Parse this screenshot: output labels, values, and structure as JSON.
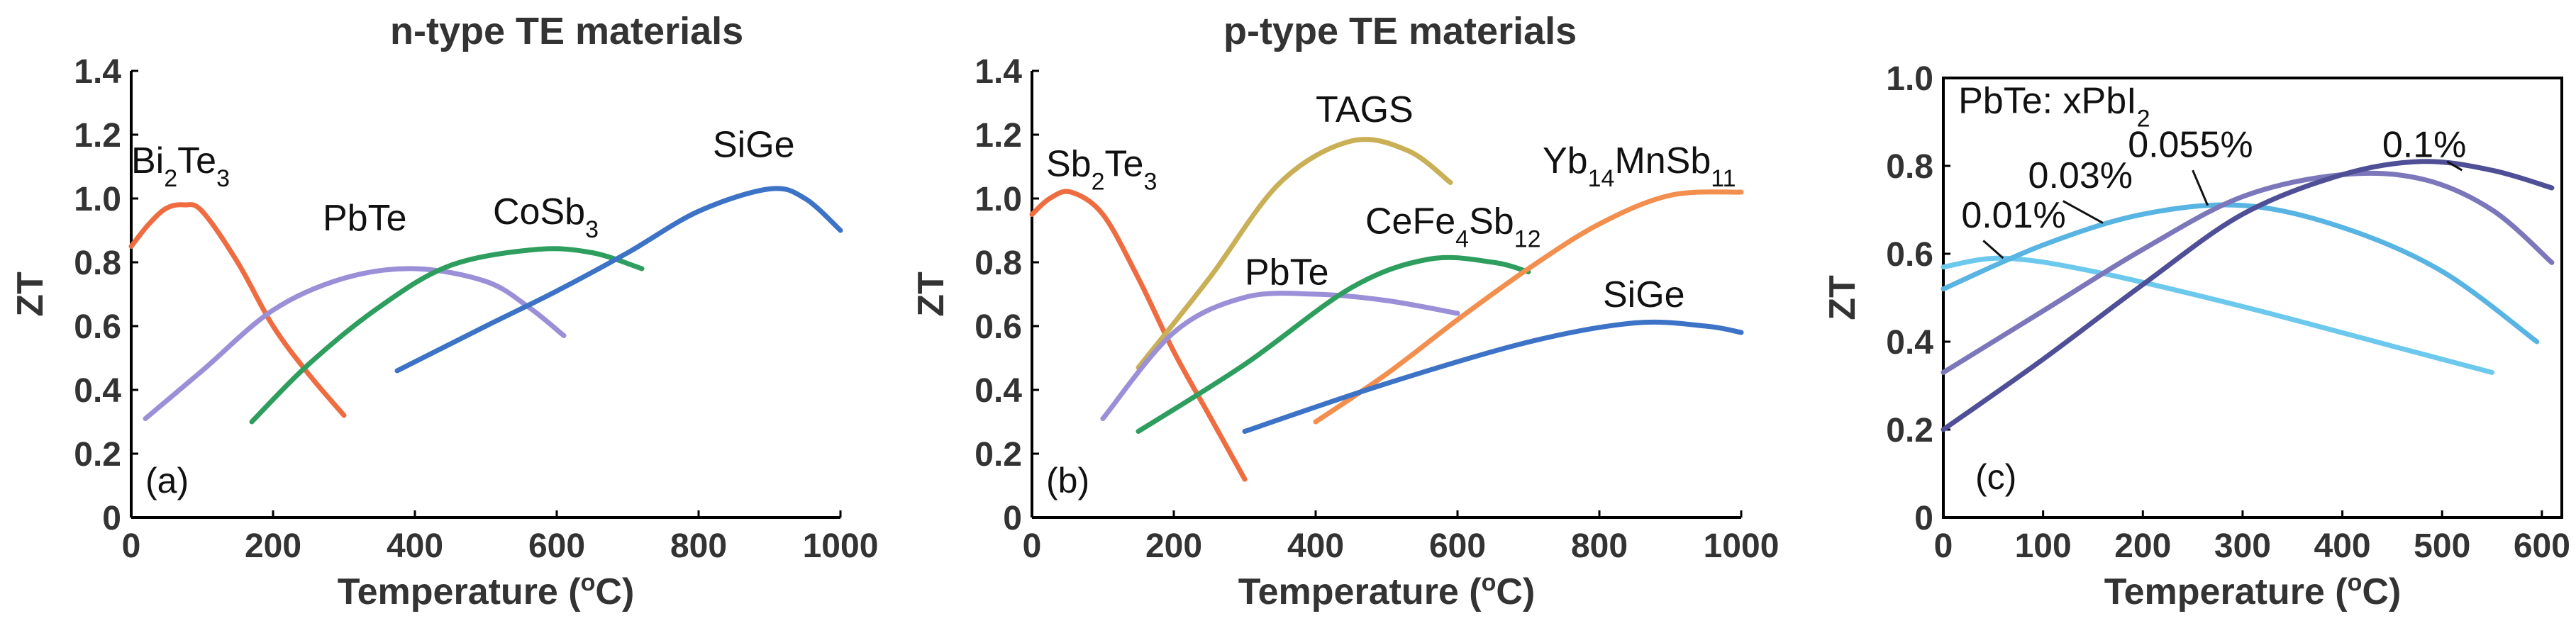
{
  "chart_data": [
    {
      "type": "line",
      "title": "n-type TE materials",
      "panel_label": "(a)",
      "xlabel": "Temperature (",
      "xlabel_sup": "o",
      "xlabel_end": "C)",
      "ylabel": "ZT",
      "xlim": [
        0,
        1000
      ],
      "ylim": [
        0,
        1.4
      ],
      "xticks": [
        0,
        200,
        400,
        600,
        800,
        1000
      ],
      "yticks": [
        0,
        0.2,
        0.4,
        0.6,
        0.8,
        1.0,
        1.2,
        1.4
      ],
      "ytick_labels": [
        "0",
        "0.2",
        "0.4",
        "0.6",
        "0.8",
        "1.0",
        "1.2",
        "1.4"
      ],
      "series": [
        {
          "name": "Bi2Te3",
          "color": "#EE6C40",
          "points": [
            [
              0,
              0.85
            ],
            [
              25,
              0.92
            ],
            [
              50,
              0.97
            ],
            [
              75,
              0.98
            ],
            [
              100,
              0.96
            ],
            [
              150,
              0.8
            ],
            [
              200,
              0.6
            ],
            [
              250,
              0.45
            ],
            [
              300,
              0.32
            ]
          ],
          "label": {
            "parts": [
              [
                "Bi",
                "n"
              ],
              [
                "2",
                "sub"
              ],
              [
                "Te",
                "n"
              ],
              [
                "3",
                "sub"
              ]
            ],
            "at": [
              0,
              1.08
            ]
          }
        },
        {
          "name": "PbTe",
          "color": "#9B8FD8",
          "points": [
            [
              20,
              0.31
            ],
            [
              100,
              0.46
            ],
            [
              200,
              0.65
            ],
            [
              300,
              0.75
            ],
            [
              400,
              0.78
            ],
            [
              500,
              0.74
            ],
            [
              560,
              0.66
            ],
            [
              610,
              0.57
            ]
          ],
          "label": {
            "parts": [
              [
                "PbTe",
                "n"
              ]
            ],
            "at": [
              270,
              0.9
            ]
          }
        },
        {
          "name": "CoSb3",
          "color": "#2E9E5E",
          "points": [
            [
              170,
              0.3
            ],
            [
              250,
              0.48
            ],
            [
              350,
              0.66
            ],
            [
              450,
              0.79
            ],
            [
              570,
              0.84
            ],
            [
              650,
              0.83
            ],
            [
              720,
              0.78
            ]
          ],
          "label": {
            "parts": [
              [
                "CoSb",
                "n"
              ],
              [
                "3",
                "sub"
              ]
            ],
            "at": [
              510,
              0.92
            ]
          }
        },
        {
          "name": "SiGe",
          "color": "#3C73C6",
          "points": [
            [
              375,
              0.46
            ],
            [
              500,
              0.6
            ],
            [
              600,
              0.71
            ],
            [
              700,
              0.83
            ],
            [
              800,
              0.96
            ],
            [
              900,
              1.03
            ],
            [
              950,
              1.0
            ],
            [
              1000,
              0.9
            ]
          ],
          "label": {
            "parts": [
              [
                "SiGe",
                "n"
              ]
            ],
            "at": [
              820,
              1.13
            ]
          }
        }
      ]
    },
    {
      "type": "line",
      "title": "p-type TE materials",
      "panel_label": "(b)",
      "xlabel": "Temperature (",
      "xlabel_sup": "o",
      "xlabel_end": "C)",
      "ylabel": "ZT",
      "xlim": [
        0,
        1000
      ],
      "ylim": [
        0,
        1.4
      ],
      "xticks": [
        0,
        200,
        400,
        600,
        800,
        1000
      ],
      "yticks": [
        0,
        0.2,
        0.4,
        0.6,
        0.8,
        1.0,
        1.2,
        1.4
      ],
      "ytick_labels": [
        "0",
        "0.2",
        "0.4",
        "0.6",
        "0.8",
        "1.0",
        "1.2",
        "1.4"
      ],
      "series": [
        {
          "name": "Sb2Te3",
          "color": "#EE6C40",
          "points": [
            [
              0,
              0.95
            ],
            [
              25,
              1.0
            ],
            [
              55,
              1.02
            ],
            [
              100,
              0.95
            ],
            [
              150,
              0.75
            ],
            [
              200,
              0.52
            ],
            [
              250,
              0.32
            ],
            [
              300,
              0.12
            ]
          ],
          "label": {
            "parts": [
              [
                "Sb",
                "n"
              ],
              [
                "2",
                "sub"
              ],
              [
                "Te",
                "n"
              ],
              [
                "3",
                "sub"
              ]
            ],
            "at": [
              20,
              1.07
            ]
          }
        },
        {
          "name": "TAGS",
          "color": "#C9AF55",
          "points": [
            [
              150,
              0.47
            ],
            [
              250,
              0.75
            ],
            [
              350,
              1.05
            ],
            [
              450,
              1.18
            ],
            [
              530,
              1.15
            ],
            [
              590,
              1.05
            ]
          ],
          "label": {
            "parts": [
              [
                "TAGS",
                "n"
              ]
            ],
            "at": [
              400,
              1.24
            ]
          }
        },
        {
          "name": "PbTe",
          "color": "#9B8FD8",
          "points": [
            [
              100,
              0.31
            ],
            [
              200,
              0.58
            ],
            [
              300,
              0.69
            ],
            [
              400,
              0.7
            ],
            [
              500,
              0.68
            ],
            [
              600,
              0.64
            ]
          ],
          "label": {
            "parts": [
              [
                "PbTe",
                "n"
              ]
            ],
            "at": [
              300,
              0.73
            ]
          }
        },
        {
          "name": "CeFe4Sb12",
          "color": "#2E9E5E",
          "points": [
            [
              150,
              0.27
            ],
            [
              300,
              0.48
            ],
            [
              450,
              0.72
            ],
            [
              560,
              0.81
            ],
            [
              650,
              0.8
            ],
            [
              700,
              0.77
            ]
          ],
          "label": {
            "parts": [
              [
                "CeFe",
                "n"
              ],
              [
                "4",
                "sub"
              ],
              [
                "Sb",
                "n"
              ],
              [
                "12",
                "sub"
              ]
            ],
            "at": [
              470,
              0.89
            ]
          }
        },
        {
          "name": "Yb14MnSb11",
          "color": "#F28F4E",
          "points": [
            [
              400,
              0.3
            ],
            [
              500,
              0.45
            ],
            [
              600,
              0.62
            ],
            [
              700,
              0.78
            ],
            [
              800,
              0.92
            ],
            [
              900,
              1.01
            ],
            [
              1000,
              1.02
            ]
          ],
          "label": {
            "parts": [
              [
                "Yb",
                "n"
              ],
              [
                "14",
                "sub"
              ],
              [
                "MnSb",
                "n"
              ],
              [
                "11",
                "sub"
              ]
            ],
            "at": [
              720,
              1.08
            ]
          }
        },
        {
          "name": "SiGe",
          "color": "#3C73C6",
          "points": [
            [
              300,
              0.27
            ],
            [
              500,
              0.42
            ],
            [
              700,
              0.55
            ],
            [
              850,
              0.61
            ],
            [
              950,
              0.6
            ],
            [
              1000,
              0.58
            ]
          ],
          "label": {
            "parts": [
              [
                "SiGe",
                "n"
              ]
            ],
            "at": [
              805,
              0.66
            ]
          }
        }
      ]
    },
    {
      "type": "line",
      "title": "",
      "panel_label": "(c)",
      "xlabel": "Temperature (",
      "xlabel_sup": "o",
      "xlabel_end": "C)",
      "ylabel": "ZT",
      "xlim": [
        0,
        620
      ],
      "ylim": [
        0,
        1.0
      ],
      "xticks": [
        0,
        100,
        200,
        300,
        400,
        500,
        600
      ],
      "yticks": [
        0,
        0.2,
        0.4,
        0.6,
        0.8,
        1.0
      ],
      "ytick_labels": [
        "0",
        "0.2",
        "0.4",
        "0.6",
        "0.8",
        "1.0"
      ],
      "legend_title": {
        "parts": [
          [
            "PbTe: xPbI",
            "n"
          ],
          [
            "2",
            "sub"
          ]
        ],
        "at": [
          15,
          0.92
        ]
      },
      "series": [
        {
          "name": "0.01%",
          "color": "#6CC8EC",
          "points": [
            [
              0,
              0.57
            ],
            [
              60,
              0.59
            ],
            [
              150,
              0.56
            ],
            [
              300,
              0.48
            ],
            [
              450,
              0.39
            ],
            [
              550,
              0.33
            ]
          ],
          "label": {
            "parts": [
              [
                "0.01%",
                "n"
              ]
            ],
            "at": [
              18,
              0.66
            ]
          }
        },
        {
          "name": "0.03%",
          "color": "#58B4E2",
          "points": [
            [
              0,
              0.52
            ],
            [
              100,
              0.62
            ],
            [
              200,
              0.69
            ],
            [
              300,
              0.71
            ],
            [
              400,
              0.66
            ],
            [
              500,
              0.56
            ],
            [
              595,
              0.4
            ]
          ],
          "label": {
            "parts": [
              [
                "0.03%",
                "n"
              ]
            ],
            "at": [
              85,
              0.75
            ]
          }
        },
        {
          "name": "0.055%",
          "color": "#7B77BA",
          "points": [
            [
              0,
              0.33
            ],
            [
              100,
              0.47
            ],
            [
              200,
              0.61
            ],
            [
              300,
              0.73
            ],
            [
              400,
              0.78
            ],
            [
              480,
              0.77
            ],
            [
              550,
              0.7
            ],
            [
              610,
              0.58
            ]
          ],
          "label": {
            "parts": [
              [
                "0.055%",
                "n"
              ]
            ],
            "at": [
              185,
              0.82
            ]
          }
        },
        {
          "name": "0.1%",
          "color": "#4F4F97",
          "points": [
            [
              0,
              0.2
            ],
            [
              100,
              0.36
            ],
            [
              200,
              0.53
            ],
            [
              300,
              0.69
            ],
            [
              400,
              0.78
            ],
            [
              480,
              0.81
            ],
            [
              550,
              0.79
            ],
            [
              610,
              0.75
            ]
          ],
          "label": {
            "parts": [
              [
                "0.1%",
                "n"
              ]
            ],
            "at": [
              440,
              0.82
            ]
          }
        }
      ]
    }
  ]
}
